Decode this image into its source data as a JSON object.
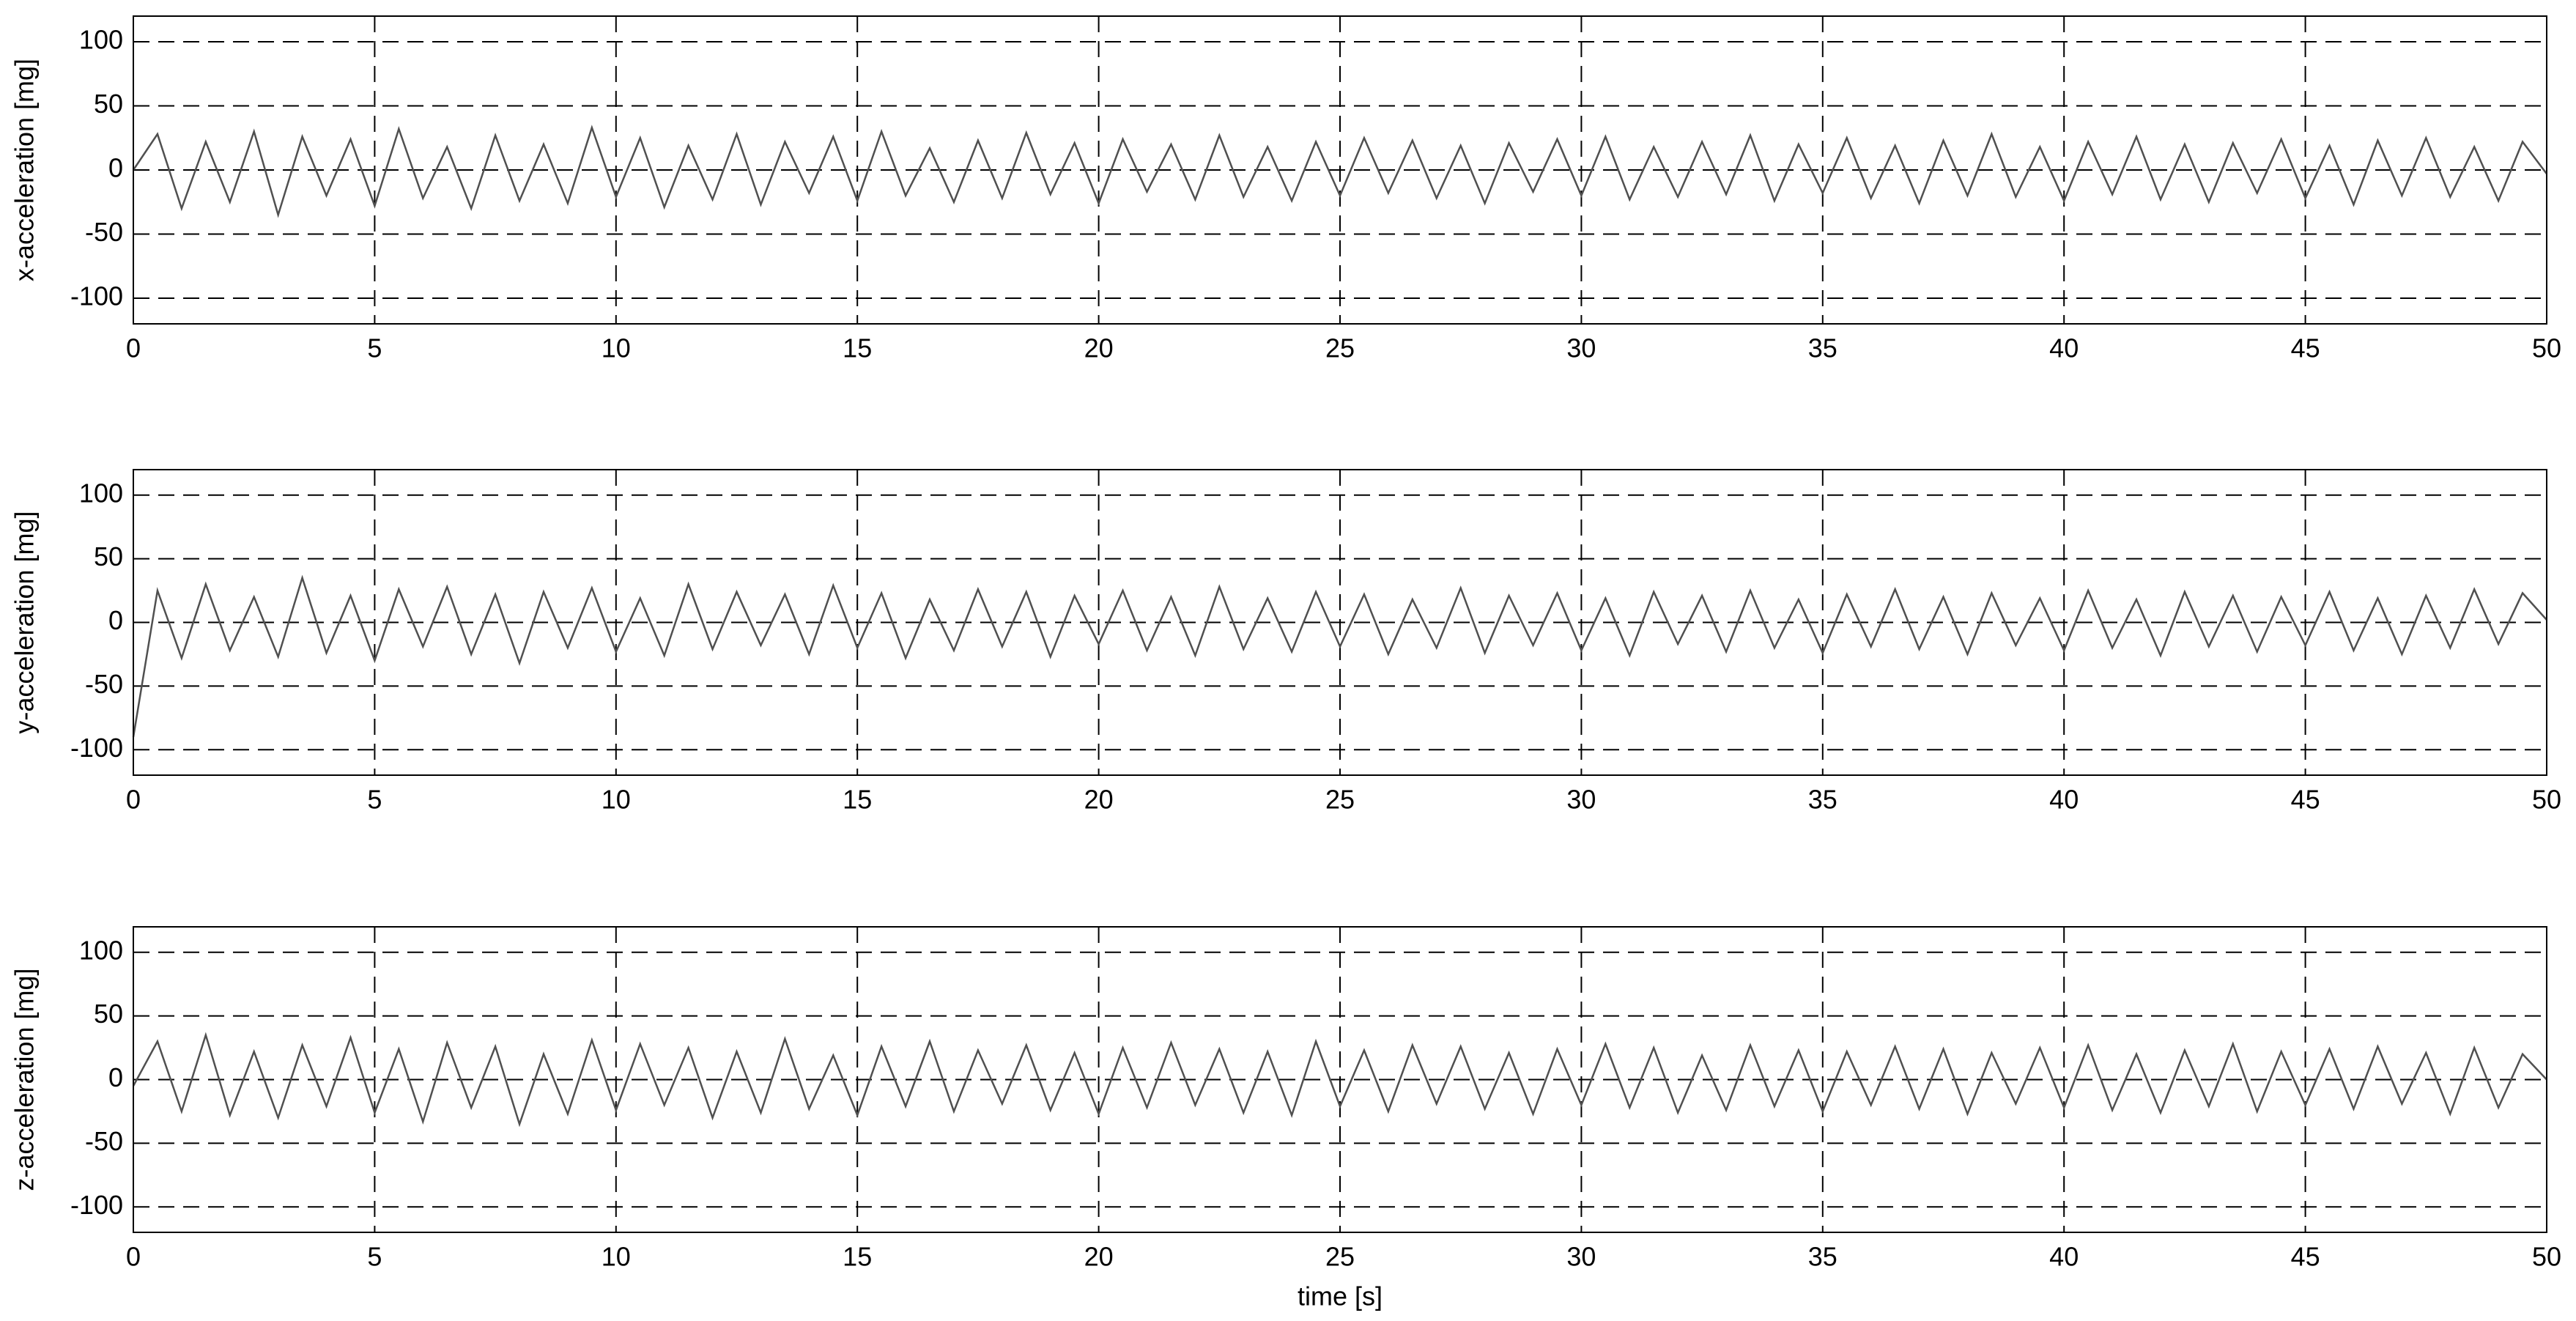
{
  "chart_data": [
    {
      "type": "line",
      "ylabel": "x-acceleration [mg]",
      "x": [
        0,
        0.5,
        1,
        1.5,
        2,
        2.5,
        3,
        3.5,
        4,
        4.5,
        5,
        5.5,
        6,
        6.5,
        7,
        7.5,
        8,
        8.5,
        9,
        9.5,
        10,
        10.5,
        11,
        11.5,
        12,
        12.5,
        13,
        13.5,
        14,
        14.5,
        15,
        15.5,
        16,
        16.5,
        17,
        17.5,
        18,
        18.5,
        19,
        19.5,
        20,
        20.5,
        21,
        21.5,
        22,
        22.5,
        23,
        23.5,
        24,
        24.5,
        25,
        25.5,
        26,
        26.5,
        27,
        27.5,
        28,
        28.5,
        29,
        29.5,
        30,
        30.5,
        31,
        31.5,
        32,
        32.5,
        33,
        33.5,
        34,
        34.5,
        35,
        35.5,
        36,
        36.5,
        37,
        37.5,
        38,
        38.5,
        39,
        39.5,
        40,
        40.5,
        41,
        41.5,
        42,
        42.5,
        43,
        43.5,
        44,
        44.5,
        45,
        45.5,
        46,
        46.5,
        47,
        47.5,
        48,
        48.5,
        49,
        49.5,
        50
      ],
      "series": [
        {
          "color": "#505050",
          "values": [
            0,
            28,
            -30,
            22,
            -25,
            30,
            -35,
            26,
            -20,
            24,
            -28,
            32,
            -22,
            18,
            -30,
            27,
            -24,
            20,
            -26,
            33,
            -21,
            25,
            -29,
            19,
            -23,
            28,
            -27,
            22,
            -18,
            26,
            -24,
            30,
            -20,
            17,
            -25,
            23,
            -22,
            29,
            -19,
            21,
            -26,
            24,
            -17,
            20,
            -23,
            27,
            -21,
            18,
            -24,
            22,
            -20,
            25,
            -18,
            23,
            -22,
            19,
            -26,
            21,
            -17,
            24,
            -20,
            26,
            -23,
            18,
            -21,
            22,
            -19,
            27,
            -24,
            20,
            -18,
            25,
            -22,
            19,
            -26,
            23,
            -20,
            28,
            -21,
            18,
            -24,
            22,
            -19,
            26,
            -23,
            20,
            -25,
            21,
            -18,
            24,
            -22,
            19,
            -27,
            23,
            -20,
            25,
            -21,
            18,
            -24,
            22,
            -3
          ]
        }
      ],
      "xlim": [
        0,
        50
      ],
      "ylim": [
        -120,
        120
      ],
      "xticks": [
        0,
        5,
        10,
        15,
        20,
        25,
        30,
        35,
        40,
        45,
        50
      ],
      "yticks": [
        -100,
        -50,
        0,
        50,
        100
      ],
      "grid": true
    },
    {
      "type": "line",
      "ylabel": "y-acceleration [mg]",
      "x": [
        0,
        0.5,
        1,
        1.5,
        2,
        2.5,
        3,
        3.5,
        4,
        4.5,
        5,
        5.5,
        6,
        6.5,
        7,
        7.5,
        8,
        8.5,
        9,
        9.5,
        10,
        10.5,
        11,
        11.5,
        12,
        12.5,
        13,
        13.5,
        14,
        14.5,
        15,
        15.5,
        16,
        16.5,
        17,
        17.5,
        18,
        18.5,
        19,
        19.5,
        20,
        20.5,
        21,
        21.5,
        22,
        22.5,
        23,
        23.5,
        24,
        24.5,
        25,
        25.5,
        26,
        26.5,
        27,
        27.5,
        28,
        28.5,
        29,
        29.5,
        30,
        30.5,
        31,
        31.5,
        32,
        32.5,
        33,
        33.5,
        34,
        34.5,
        35,
        35.5,
        36,
        36.5,
        37,
        37.5,
        38,
        38.5,
        39,
        39.5,
        40,
        40.5,
        41,
        41.5,
        42,
        42.5,
        43,
        43.5,
        44,
        44.5,
        45,
        45.5,
        46,
        46.5,
        47,
        47.5,
        48,
        48.5,
        49,
        49.5,
        50
      ],
      "series": [
        {
          "color": "#505050",
          "values": [
            -90,
            25,
            -28,
            30,
            -22,
            20,
            -27,
            35,
            -24,
            21,
            -30,
            26,
            -19,
            28,
            -25,
            22,
            -32,
            24,
            -20,
            27,
            -23,
            19,
            -26,
            30,
            -21,
            24,
            -18,
            22,
            -25,
            29,
            -20,
            23,
            -28,
            18,
            -22,
            26,
            -19,
            24,
            -27,
            21,
            -17,
            25,
            -22,
            20,
            -26,
            28,
            -21,
            19,
            -23,
            24,
            -19,
            22,
            -25,
            18,
            -20,
            27,
            -24,
            21,
            -18,
            23,
            -22,
            19,
            -26,
            24,
            -17,
            21,
            -23,
            25,
            -20,
            18,
            -24,
            22,
            -19,
            26,
            -21,
            20,
            -25,
            23,
            -18,
            19,
            -22,
            25,
            -20,
            18,
            -26,
            24,
            -19,
            21,
            -23,
            20,
            -18,
            24,
            -22,
            19,
            -25,
            21,
            -20,
            26,
            -17,
            23,
            2
          ]
        }
      ],
      "xlim": [
        0,
        50
      ],
      "ylim": [
        -120,
        120
      ],
      "xticks": [
        0,
        5,
        10,
        15,
        20,
        25,
        30,
        35,
        40,
        45,
        50
      ],
      "yticks": [
        -100,
        -50,
        0,
        50,
        100
      ],
      "grid": true
    },
    {
      "type": "line",
      "ylabel": "z-acceleration [mg]",
      "xlabel": "time [s]",
      "x": [
        0,
        0.5,
        1,
        1.5,
        2,
        2.5,
        3,
        3.5,
        4,
        4.5,
        5,
        5.5,
        6,
        6.5,
        7,
        7.5,
        8,
        8.5,
        9,
        9.5,
        10,
        10.5,
        11,
        11.5,
        12,
        12.5,
        13,
        13.5,
        14,
        14.5,
        15,
        15.5,
        16,
        16.5,
        17,
        17.5,
        18,
        18.5,
        19,
        19.5,
        20,
        20.5,
        21,
        21.5,
        22,
        22.5,
        23,
        23.5,
        24,
        24.5,
        25,
        25.5,
        26,
        26.5,
        27,
        27.5,
        28,
        28.5,
        29,
        29.5,
        30,
        30.5,
        31,
        31.5,
        32,
        32.5,
        33,
        33.5,
        34,
        34.5,
        35,
        35.5,
        36,
        36.5,
        37,
        37.5,
        38,
        38.5,
        39,
        39.5,
        40,
        40.5,
        41,
        41.5,
        42,
        42.5,
        43,
        43.5,
        44,
        44.5,
        45,
        45.5,
        46,
        46.5,
        47,
        47.5,
        48,
        48.5,
        49,
        49.5,
        50
      ],
      "series": [
        {
          "color": "#505050",
          "values": [
            -5,
            30,
            -25,
            35,
            -28,
            22,
            -30,
            27,
            -21,
            33,
            -26,
            24,
            -33,
            29,
            -22,
            26,
            -35,
            20,
            -27,
            31,
            -24,
            28,
            -20,
            25,
            -30,
            22,
            -26,
            32,
            -23,
            19,
            -28,
            26,
            -21,
            30,
            -25,
            23,
            -19,
            27,
            -24,
            21,
            -27,
            25,
            -22,
            29,
            -20,
            24,
            -26,
            22,
            -28,
            30,
            -21,
            23,
            -25,
            27,
            -19,
            26,
            -23,
            21,
            -27,
            24,
            -20,
            28,
            -22,
            25,
            -26,
            19,
            -24,
            27,
            -21,
            23,
            -25,
            22,
            -20,
            26,
            -23,
            24,
            -27,
            21,
            -19,
            25,
            -22,
            27,
            -24,
            20,
            -26,
            23,
            -21,
            28,
            -25,
            22,
            -20,
            24,
            -23,
            26,
            -19,
            21,
            -27,
            25,
            -22,
            20,
            0
          ]
        }
      ],
      "xlim": [
        0,
        50
      ],
      "ylim": [
        -120,
        120
      ],
      "xticks": [
        0,
        5,
        10,
        15,
        20,
        25,
        30,
        35,
        40,
        45,
        50
      ],
      "yticks": [
        -100,
        -50,
        0,
        50,
        100
      ],
      "grid": true
    }
  ]
}
